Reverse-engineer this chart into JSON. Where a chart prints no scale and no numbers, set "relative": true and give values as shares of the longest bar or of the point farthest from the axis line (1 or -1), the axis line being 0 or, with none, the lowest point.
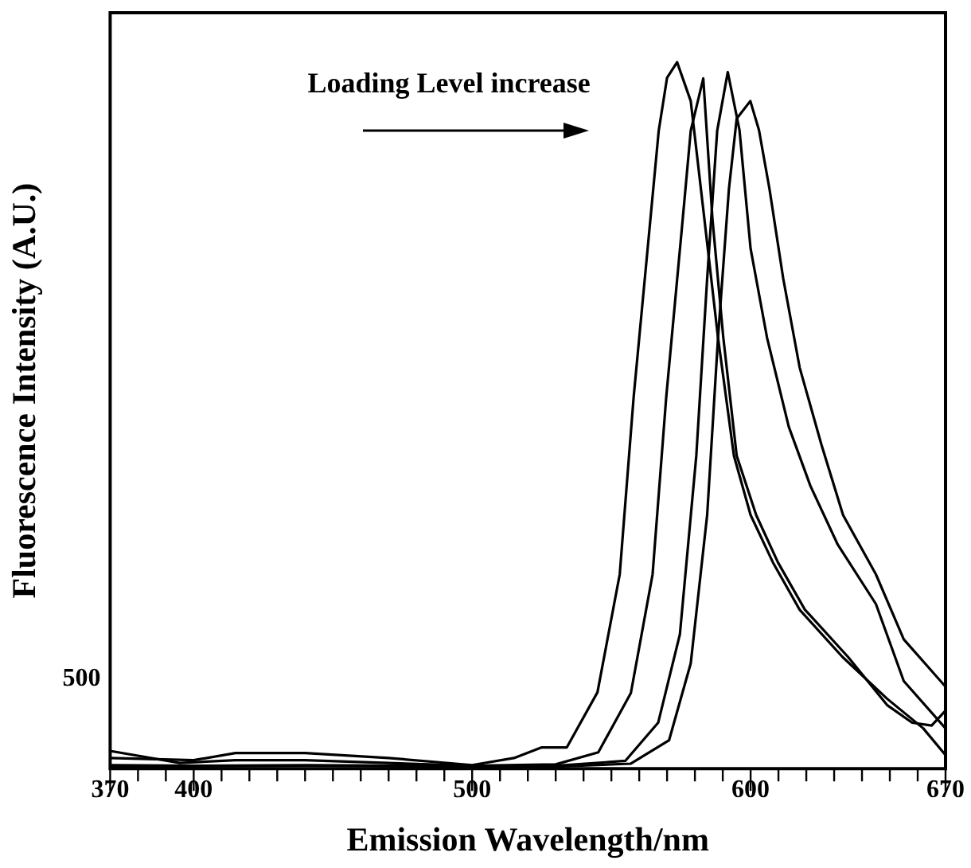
{
  "chart_data": {
    "type": "line",
    "relative": true,
    "xlabel": "Emission Wavelength/nm",
    "ylabel": "Fluorescence Intensity (A.U.)",
    "annotations": [
      "Loading Level increase",
      "500"
    ],
    "xlim": [
      370,
      670
    ],
    "xticks": [
      370,
      {
        "value": 380,
        "label": null
      },
      {
        "value": 390,
        "label": null
      },
      400,
      {
        "value": 410,
        "label": null
      },
      {
        "value": 420,
        "label": null
      },
      {
        "value": 430,
        "label": null
      },
      {
        "value": 440,
        "label": null
      },
      {
        "value": 450,
        "label": null
      },
      {
        "value": 460,
        "label": null
      },
      {
        "value": 470,
        "label": null
      },
      {
        "value": 480,
        "label": null
      },
      {
        "value": 490,
        "label": null
      },
      500,
      {
        "value": 510,
        "label": null
      },
      {
        "value": 520,
        "label": null
      },
      {
        "value": 530,
        "label": null
      },
      {
        "value": 540,
        "label": null
      },
      {
        "value": 550,
        "label": null
      },
      {
        "value": 560,
        "label": null
      },
      {
        "value": 570,
        "label": null
      },
      {
        "value": 580,
        "label": null
      },
      {
        "value": 590,
        "label": null
      },
      600,
      {
        "value": 610,
        "label": null
      },
      {
        "value": 620,
        "label": null
      },
      {
        "value": 630,
        "label": null
      },
      {
        "value": 640,
        "label": null
      },
      {
        "value": 650,
        "label": null
      },
      {
        "value": 660,
        "label": null
      },
      670
    ],
    "grid": false,
    "legend": false,
    "marker": "none",
    "line_style": "solid",
    "series": [
      {
        "color": "#000000",
        "x": [
          370,
          400,
          415,
          440,
          470,
          500,
          515,
          525,
          534,
          545,
          553,
          558,
          564,
          567,
          570,
          573.6,
          578.5,
          583.4,
          588.3,
          594,
          600,
          608,
          617.6,
          633,
          649,
          662,
          670
        ],
        "values": [
          0.015,
          0.012,
          0.022,
          0.022,
          0.015,
          0.005,
          0.015,
          0.03,
          0.03,
          0.108,
          0.275,
          0.526,
          0.777,
          0.903,
          0.978,
          1.0,
          0.945,
          0.778,
          0.61,
          0.443,
          0.359,
          0.292,
          0.225,
          0.158,
          0.099,
          0.057,
          0.019
        ]
      },
      {
        "color": "#000000",
        "x": [
          370,
          395,
          415,
          440,
          470,
          500,
          530,
          545.3,
          557,
          564.8,
          569.7,
          575.6,
          578.5,
          583,
          586.3,
          590.2,
          595,
          602,
          609.8,
          619.5,
          635,
          649,
          658,
          665,
          670
        ],
        "values": [
          0.025,
          0.008,
          0.012,
          0.012,
          0.008,
          0.004,
          0.006,
          0.023,
          0.107,
          0.275,
          0.526,
          0.777,
          0.903,
          0.977,
          0.778,
          0.61,
          0.443,
          0.359,
          0.292,
          0.225,
          0.158,
          0.09,
          0.065,
          0.061,
          0.082
        ]
      },
      {
        "color": "#000000",
        "x": [
          370,
          400,
          440,
          480,
          500,
          530,
          555,
          566.8,
          574.6,
          580.5,
          584.4,
          588,
          591.8,
          596,
          600,
          605.9,
          613.7,
          621.5,
          631.3,
          645,
          655,
          670
        ],
        "values": [
          0.005,
          0.004,
          0.005,
          0.004,
          0.003,
          0.004,
          0.011,
          0.065,
          0.19,
          0.443,
          0.694,
          0.903,
          0.986,
          0.904,
          0.736,
          0.61,
          0.484,
          0.4,
          0.317,
          0.233,
          0.124,
          0.057
        ]
      },
      {
        "color": "#000000",
        "x": [
          370,
          400,
          440,
          480,
          500,
          530,
          557,
          570.7,
          578.5,
          584.4,
          588.3,
          592.2,
          595,
          599.9,
          603,
          606.8,
          611.7,
          617.6,
          625.4,
          633.2,
          645,
          655,
          670
        ],
        "values": [
          0.003,
          0.003,
          0.004,
          0.003,
          0.002,
          0.003,
          0.007,
          0.04,
          0.149,
          0.359,
          0.61,
          0.82,
          0.92,
          0.945,
          0.904,
          0.82,
          0.694,
          0.568,
          0.459,
          0.359,
          0.275,
          0.183,
          0.116
        ]
      }
    ]
  }
}
